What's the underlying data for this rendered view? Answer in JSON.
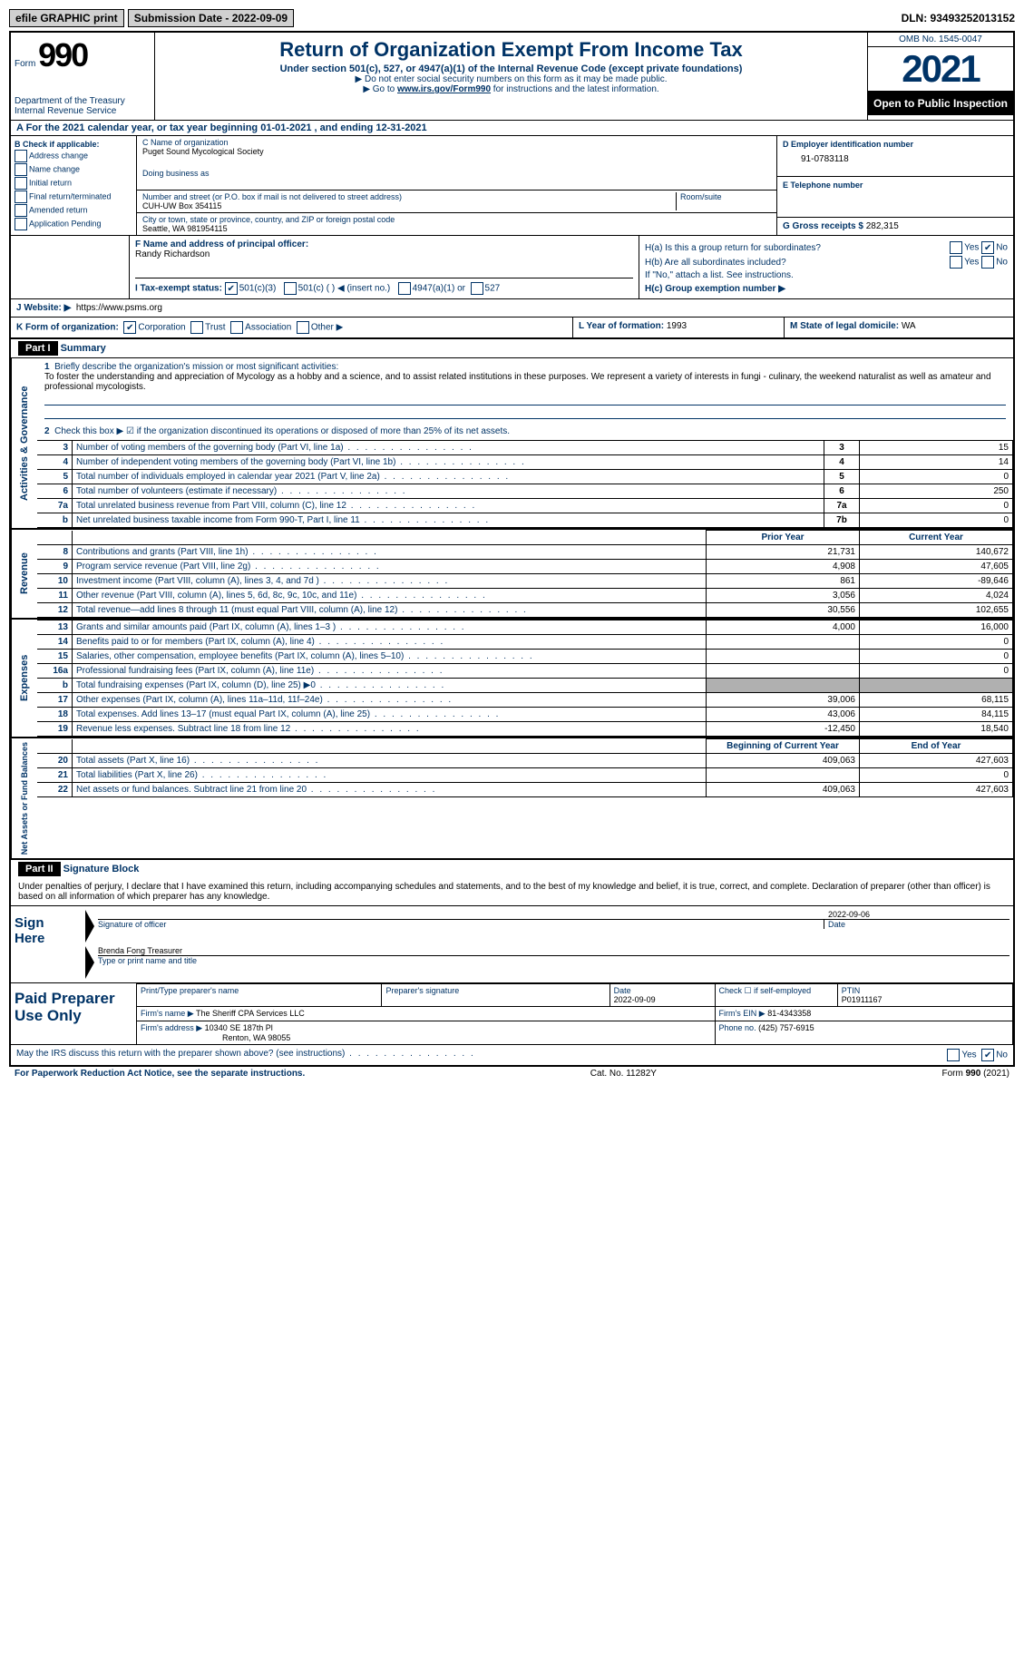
{
  "topbar": {
    "efile": "efile GRAPHIC print",
    "sub_label": "Submission Date - 2022-09-09",
    "dln": "DLN: 93493252013152"
  },
  "header": {
    "form_word": "Form",
    "form_num": "990",
    "dept": "Department of the Treasury",
    "irs": "Internal Revenue Service",
    "title": "Return of Organization Exempt From Income Tax",
    "subtitle": "Under section 501(c), 527, or 4947(a)(1) of the Internal Revenue Code (except private foundations)",
    "note1": "▶ Do not enter social security numbers on this form as it may be made public.",
    "note2_pre": "▶ Go to ",
    "note2_link": "www.irs.gov/Form990",
    "note2_post": " for instructions and the latest information.",
    "omb": "OMB No. 1545-0047",
    "year": "2021",
    "open": "Open to Public Inspection"
  },
  "row_a": {
    "text_pre": "A For the 2021 calendar year, or tax year beginning ",
    "begin": "01-01-2021",
    "mid": " , and ending ",
    "end": "12-31-2021"
  },
  "col_b": {
    "label": "B Check if applicable:",
    "opts": [
      "Address change",
      "Name change",
      "Initial return",
      "Final return/terminated",
      "Amended return",
      "Application Pending"
    ]
  },
  "col_c": {
    "name_lbl": "C Name of organization",
    "name": "Puget Sound Mycological Society",
    "dba_lbl": "Doing business as",
    "street_lbl": "Number and street (or P.O. box if mail is not delivered to street address)",
    "room_lbl": "Room/suite",
    "street": "CUH-UW Box 354115",
    "city_lbl": "City or town, state or province, country, and ZIP or foreign postal code",
    "city": "Seattle, WA  981954115"
  },
  "col_d": {
    "ein_lbl": "D Employer identification number",
    "ein": "91-0783118",
    "tel_lbl": "E Telephone number",
    "gross_lbl": "G Gross receipts $",
    "gross": "282,315"
  },
  "row_f": {
    "lbl": "F Name and address of principal officer:",
    "name": "Randy Richardson"
  },
  "row_h": {
    "ha_lbl": "H(a)  Is this a group return for subordinates?",
    "hb_lbl": "H(b)  Are all subordinates included?",
    "hb_note": "If \"No,\" attach a list. See instructions.",
    "hc_lbl": "H(c)  Group exemption number ▶",
    "yes": "Yes",
    "no": "No"
  },
  "row_i": {
    "lbl": "I   Tax-exempt status:",
    "opt1": "501(c)(3)",
    "opt2": "501(c) (  ) ◀ (insert no.)",
    "opt3": "4947(a)(1) or",
    "opt4": "527"
  },
  "row_j": {
    "lbl": "J   Website: ▶",
    "url": "https://www.psms.org"
  },
  "row_k": {
    "lbl": "K Form of organization:",
    "opts": [
      "Corporation",
      "Trust",
      "Association",
      "Other ▶"
    ],
    "l_lbl": "L Year of formation:",
    "l_val": "1993",
    "m_lbl": "M State of legal domicile:",
    "m_val": "WA"
  },
  "part1": {
    "hdr": "Part I",
    "title": "Summary",
    "side_ag": "Activities & Governance",
    "side_rev": "Revenue",
    "side_exp": "Expenses",
    "side_net": "Net Assets or Fund Balances",
    "line1_lbl": "Briefly describe the organization's mission or most significant activities:",
    "line1_txt": "To foster the understanding and appreciation of Mycology as a hobby and a science, and to assist related institutions in these purposes. We represent a variety of interests in fungi - culinary, the weekend naturalist as well as amateur and professional mycologists.",
    "line2": "Check this box ▶ ☑ if the organization discontinued its operations or disposed of more than 25% of its net assets.",
    "prior": "Prior Year",
    "current": "Current Year",
    "begin": "Beginning of Current Year",
    "endyr": "End of Year",
    "rows_ag": [
      {
        "n": "3",
        "d": "Number of voting members of the governing body (Part VI, line 1a)",
        "box": "3",
        "v": "15"
      },
      {
        "n": "4",
        "d": "Number of independent voting members of the governing body (Part VI, line 1b)",
        "box": "4",
        "v": "14"
      },
      {
        "n": "5",
        "d": "Total number of individuals employed in calendar year 2021 (Part V, line 2a)",
        "box": "5",
        "v": "0"
      },
      {
        "n": "6",
        "d": "Total number of volunteers (estimate if necessary)",
        "box": "6",
        "v": "250"
      },
      {
        "n": "7a",
        "d": "Total unrelated business revenue from Part VIII, column (C), line 12",
        "box": "7a",
        "v": "0"
      },
      {
        "n": "b",
        "d": "Net unrelated business taxable income from Form 990-T, Part I, line 11",
        "box": "7b",
        "v": "0"
      }
    ],
    "rows_rev": [
      {
        "n": "8",
        "d": "Contributions and grants (Part VIII, line 1h)",
        "p": "21,731",
        "c": "140,672"
      },
      {
        "n": "9",
        "d": "Program service revenue (Part VIII, line 2g)",
        "p": "4,908",
        "c": "47,605"
      },
      {
        "n": "10",
        "d": "Investment income (Part VIII, column (A), lines 3, 4, and 7d )",
        "p": "861",
        "c": "-89,646"
      },
      {
        "n": "11",
        "d": "Other revenue (Part VIII, column (A), lines 5, 6d, 8c, 9c, 10c, and 11e)",
        "p": "3,056",
        "c": "4,024"
      },
      {
        "n": "12",
        "d": "Total revenue—add lines 8 through 11 (must equal Part VIII, column (A), line 12)",
        "p": "30,556",
        "c": "102,655"
      }
    ],
    "rows_exp": [
      {
        "n": "13",
        "d": "Grants and similar amounts paid (Part IX, column (A), lines 1–3 )",
        "p": "4,000",
        "c": "16,000"
      },
      {
        "n": "14",
        "d": "Benefits paid to or for members (Part IX, column (A), line 4)",
        "p": "",
        "c": "0"
      },
      {
        "n": "15",
        "d": "Salaries, other compensation, employee benefits (Part IX, column (A), lines 5–10)",
        "p": "",
        "c": "0"
      },
      {
        "n": "16a",
        "d": "Professional fundraising fees (Part IX, column (A), line 11e)",
        "p": "",
        "c": "0"
      },
      {
        "n": "b",
        "d": "Total fundraising expenses (Part IX, column (D), line 25) ▶0",
        "p": "shade",
        "c": "shade"
      },
      {
        "n": "17",
        "d": "Other expenses (Part IX, column (A), lines 11a–11d, 11f–24e)",
        "p": "39,006",
        "c": "68,115"
      },
      {
        "n": "18",
        "d": "Total expenses. Add lines 13–17 (must equal Part IX, column (A), line 25)",
        "p": "43,006",
        "c": "84,115"
      },
      {
        "n": "19",
        "d": "Revenue less expenses. Subtract line 18 from line 12",
        "p": "-12,450",
        "c": "18,540"
      }
    ],
    "rows_net": [
      {
        "n": "20",
        "d": "Total assets (Part X, line 16)",
        "p": "409,063",
        "c": "427,603"
      },
      {
        "n": "21",
        "d": "Total liabilities (Part X, line 26)",
        "p": "",
        "c": "0"
      },
      {
        "n": "22",
        "d": "Net assets or fund balances. Subtract line 21 from line 20",
        "p": "409,063",
        "c": "427,603"
      }
    ]
  },
  "part2": {
    "hdr": "Part II",
    "title": "Signature Block",
    "decl": "Under penalties of perjury, I declare that I have examined this return, including accompanying schedules and statements, and to the best of my knowledge and belief, it is true, correct, and complete. Declaration of preparer (other than officer) is based on all information of which preparer has any knowledge.",
    "sign_here": "Sign Here",
    "sig_officer": "Signature of officer",
    "sig_date": "2022-09-06",
    "date_lbl": "Date",
    "officer_name": "Brenda Fong  Treasurer",
    "type_name": "Type or print name and title",
    "paid_prep": "Paid Preparer Use Only",
    "prep_name_lbl": "Print/Type preparer's name",
    "prep_sig_lbl": "Preparer's signature",
    "prep_date_lbl": "Date",
    "prep_date": "2022-09-09",
    "check_self": "Check ☐ if self-employed",
    "ptin_lbl": "PTIN",
    "ptin": "P01911167",
    "firm_name_lbl": "Firm's name    ▶",
    "firm_name": "The Sheriff CPA Services LLC",
    "firm_ein_lbl": "Firm's EIN ▶",
    "firm_ein": "81-4343358",
    "firm_addr_lbl": "Firm's address ▶",
    "firm_addr1": "10340 SE 187th Pl",
    "firm_addr2": "Renton, WA  98055",
    "phone_lbl": "Phone no.",
    "phone": "(425) 757-6915",
    "may_irs": "May the IRS discuss this return with the preparer shown above? (see instructions)"
  },
  "footer": {
    "left": "For Paperwork Reduction Act Notice, see the separate instructions.",
    "mid": "Cat. No. 11282Y",
    "right": "Form 990 (2021)"
  },
  "colors": {
    "blue": "#003366",
    "shade": "#b0b0b0"
  }
}
